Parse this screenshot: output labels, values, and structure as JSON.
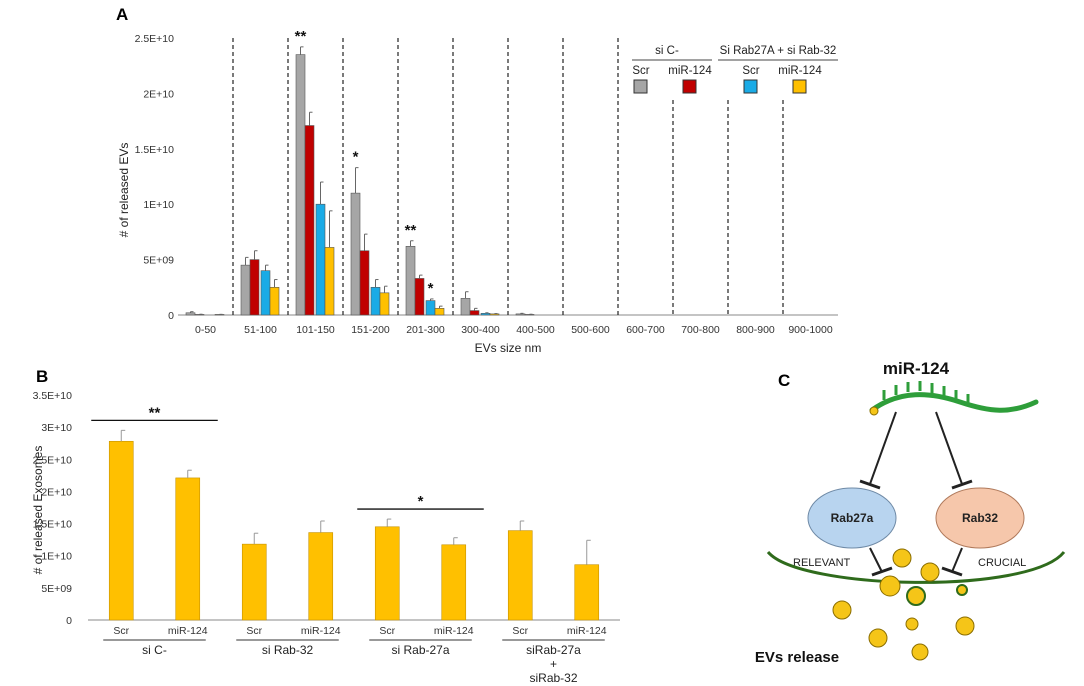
{
  "chart_data": [
    {
      "panel": "A",
      "type": "bar",
      "xlabel": "EVs size nm",
      "ylabel": "# of released EVs",
      "ylim": [
        0,
        25000000000
      ],
      "yticks": [
        "0",
        "5E+09",
        "1E+10",
        "1.5E+10",
        "2E+10",
        "2.5E+10"
      ],
      "categories": [
        "0-50",
        "51-100",
        "101-150",
        "151-200",
        "201-300",
        "300-400",
        "400-500",
        "500-600",
        "600-700",
        "700-800",
        "800-900",
        "900-1000"
      ],
      "series": [
        {
          "name": "si C- Scr",
          "color": "#a6a6a6",
          "values": [
            200000000,
            4500000000,
            23500000000,
            11000000000,
            6200000000,
            1500000000,
            100000000,
            0,
            0,
            0,
            0,
            0
          ],
          "errors": [
            100000000,
            700000000,
            700000000,
            2300000000,
            500000000,
            600000000,
            50000000,
            0,
            0,
            0,
            0,
            0
          ]
        },
        {
          "name": "si C- miR-124",
          "color": "#c00000",
          "values": [
            50000000,
            5000000000,
            17100000000,
            5800000000,
            3300000000,
            400000000,
            50000000,
            0,
            0,
            0,
            0,
            0
          ],
          "errors": [
            20000000,
            800000000,
            1200000000,
            1500000000,
            300000000,
            200000000,
            20000000,
            0,
            0,
            0,
            0,
            0
          ]
        },
        {
          "name": "Si Rab27A + si Rab-32 Scr",
          "color": "#1aabe6",
          "values": [
            0,
            4000000000,
            10000000000,
            2500000000,
            1300000000,
            150000000,
            0,
            0,
            0,
            0,
            0,
            0
          ],
          "errors": [
            0,
            500000000,
            2000000000,
            700000000,
            150000000,
            50000000,
            0,
            0,
            0,
            0,
            0,
            0
          ]
        },
        {
          "name": "Si Rab27A + si Rab-32 miR-124",
          "color": "#ffc000",
          "values": [
            50000000,
            2500000000,
            6100000000,
            2000000000,
            600000000,
            100000000,
            0,
            0,
            0,
            0,
            0,
            0
          ],
          "errors": [
            10000000,
            700000000,
            3300000000,
            600000000,
            200000000,
            30000000,
            0,
            0,
            0,
            0,
            0,
            0
          ]
        }
      ],
      "annotations": [
        {
          "category": "101-150",
          "text": "**"
        },
        {
          "category": "151-200",
          "text": "*"
        },
        {
          "category": "201-300",
          "text": "**"
        },
        {
          "category": "201-300",
          "text": "*",
          "series": "Si Rab27A + si Rab-32 Scr"
        }
      ],
      "legend": {
        "group1": "si C-",
        "group2": "Si Rab27A + si Rab-32",
        "labels": [
          "Scr",
          "miR-124",
          "Scr",
          "miR-124"
        ]
      }
    },
    {
      "panel": "B",
      "type": "bar",
      "xlabel": "",
      "ylabel": "# of released Exosomes",
      "ylim": [
        0,
        35000000000
      ],
      "yticks": [
        "0",
        "5E+09",
        "1E+10",
        "1.5E+10",
        "2E+10",
        "2.5E+10",
        "3E+10",
        "3.5E+10"
      ],
      "categories": [
        "Scr",
        "miR-124",
        "Scr",
        "miR-124",
        "Scr",
        "miR-124",
        "Scr",
        "miR-124"
      ],
      "values": [
        27800000000,
        22100000000,
        11800000000,
        13600000000,
        14500000000,
        11700000000,
        13900000000,
        8600000000
      ],
      "errors": [
        1700000000,
        1200000000,
        1700000000,
        1800000000,
        1200000000,
        1100000000,
        1500000000,
        3800000000
      ],
      "color": "#ffc000",
      "groups": [
        {
          "label": "si C-"
        },
        {
          "label": "si Rab-32"
        },
        {
          "label": "si Rab-27a"
        },
        {
          "label": "siRab-27a",
          "label2": "+",
          "label3": "siRab-32"
        }
      ],
      "annotations": [
        {
          "between": [
            0,
            1
          ],
          "text": "**"
        },
        {
          "between": [
            4,
            5
          ],
          "text": "*"
        }
      ]
    }
  ],
  "panels": {
    "a": "A",
    "b": "B",
    "c": "C"
  },
  "diagram": {
    "title": "miR-124",
    "left_oval": "Rab27a",
    "right_oval": "Rab32",
    "left_note": "RELEVANT",
    "right_note": "CRUCIAL",
    "footer": "EVs release",
    "colors": {
      "rna": "#2e9e3a",
      "left_oval": "#b8d4ef",
      "right_oval": "#f6c7ab",
      "membrane": "#2f6b1c",
      "vesicle": "#f5c518"
    }
  }
}
